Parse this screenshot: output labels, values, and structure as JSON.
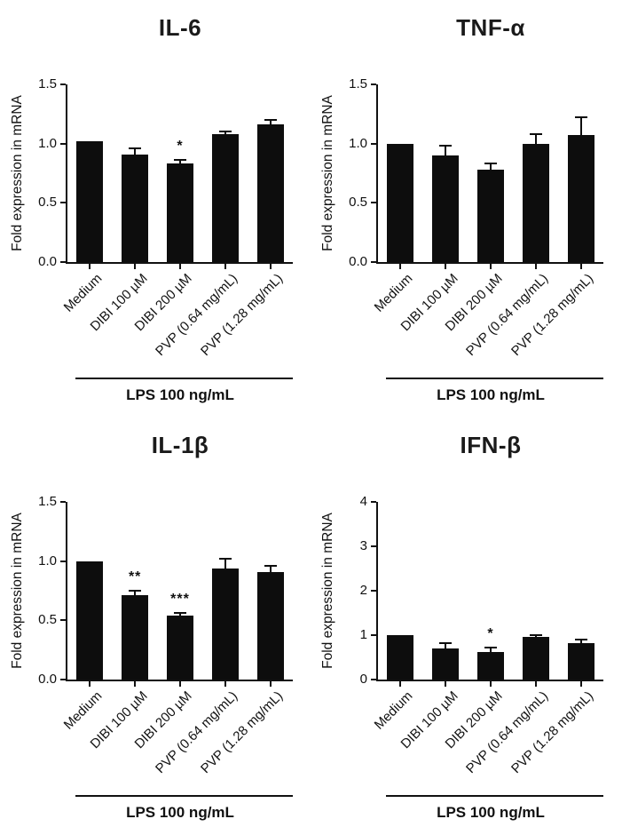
{
  "figure": {
    "bar_color": "#0d0d0d",
    "axis_color": "#111111"
  },
  "chart_data": [
    {
      "type": "bar",
      "title": "IL-6",
      "ylabel": "Fold expression in mRNA",
      "xlabel": "",
      "categories": [
        "Medium",
        "DIBI 100 µM",
        "DIBI 200 µM",
        "PVP (0.64 mg/mL)",
        "PVP (1.28 mg/mL)"
      ],
      "values": [
        1.02,
        0.91,
        0.83,
        1.08,
        1.16
      ],
      "errors": [
        0,
        0.05,
        0.03,
        0.02,
        0.04
      ],
      "annotations": [
        "",
        "",
        "*",
        "",
        ""
      ],
      "ylim": [
        0,
        1.5
      ],
      "yticks": [
        "0.0",
        "0.5",
        "1.0",
        "1.5"
      ],
      "grid": "off",
      "legend": "none",
      "group_label": "LPS 100 ng/mL"
    },
    {
      "type": "bar",
      "title": "TNF-α",
      "ylabel": "Fold expression in mRNA",
      "xlabel": "",
      "categories": [
        "Medium",
        "DIBI 100 µM",
        "DIBI 200 µM",
        "PVP (0.64 mg/mL)",
        "PVP (1.28 mg/mL)"
      ],
      "values": [
        1.0,
        0.9,
        0.78,
        1.0,
        1.07
      ],
      "errors": [
        0,
        0.08,
        0.05,
        0.08,
        0.15
      ],
      "annotations": [
        "",
        "",
        "",
        "",
        ""
      ],
      "ylim": [
        0,
        1.5
      ],
      "yticks": [
        "0.0",
        "0.5",
        "1.0",
        "1.5"
      ],
      "grid": "off",
      "legend": "none",
      "group_label": "LPS 100 ng/mL"
    },
    {
      "type": "bar",
      "title": "IL-1β",
      "ylabel": "Fold expression in mRNA",
      "xlabel": "",
      "categories": [
        "Medium",
        "DIBI 100 µM",
        "DIBI 200 µM",
        "PVP (0.64 mg/mL)",
        "PVP (1.28 mg/mL)"
      ],
      "values": [
        1.0,
        0.71,
        0.54,
        0.94,
        0.91
      ],
      "errors": [
        0,
        0.04,
        0.02,
        0.08,
        0.05
      ],
      "annotations": [
        "",
        "**",
        "***",
        "",
        ""
      ],
      "ylim": [
        0,
        1.5
      ],
      "yticks": [
        "0.0",
        "0.5",
        "1.0",
        "1.5"
      ],
      "grid": "off",
      "legend": "none",
      "group_label": "LPS 100 ng/mL"
    },
    {
      "type": "bar",
      "title": "IFN-β",
      "ylabel": "Fold expression in mRNA",
      "xlabel": "",
      "categories": [
        "Medium",
        "DIBI 100 µM",
        "DIBI 200 µM",
        "PVP (0.64 mg/mL)",
        "PVP (1.28 mg/mL)"
      ],
      "values": [
        1.0,
        0.7,
        0.62,
        0.96,
        0.83
      ],
      "errors": [
        0,
        0.13,
        0.1,
        0.05,
        0.07
      ],
      "annotations": [
        "",
        "",
        "*",
        "",
        ""
      ],
      "ylim": [
        0,
        4
      ],
      "yticks": [
        "0",
        "1",
        "2",
        "3",
        "4"
      ],
      "grid": "off",
      "legend": "none",
      "group_label": "LPS 100 ng/mL"
    }
  ]
}
